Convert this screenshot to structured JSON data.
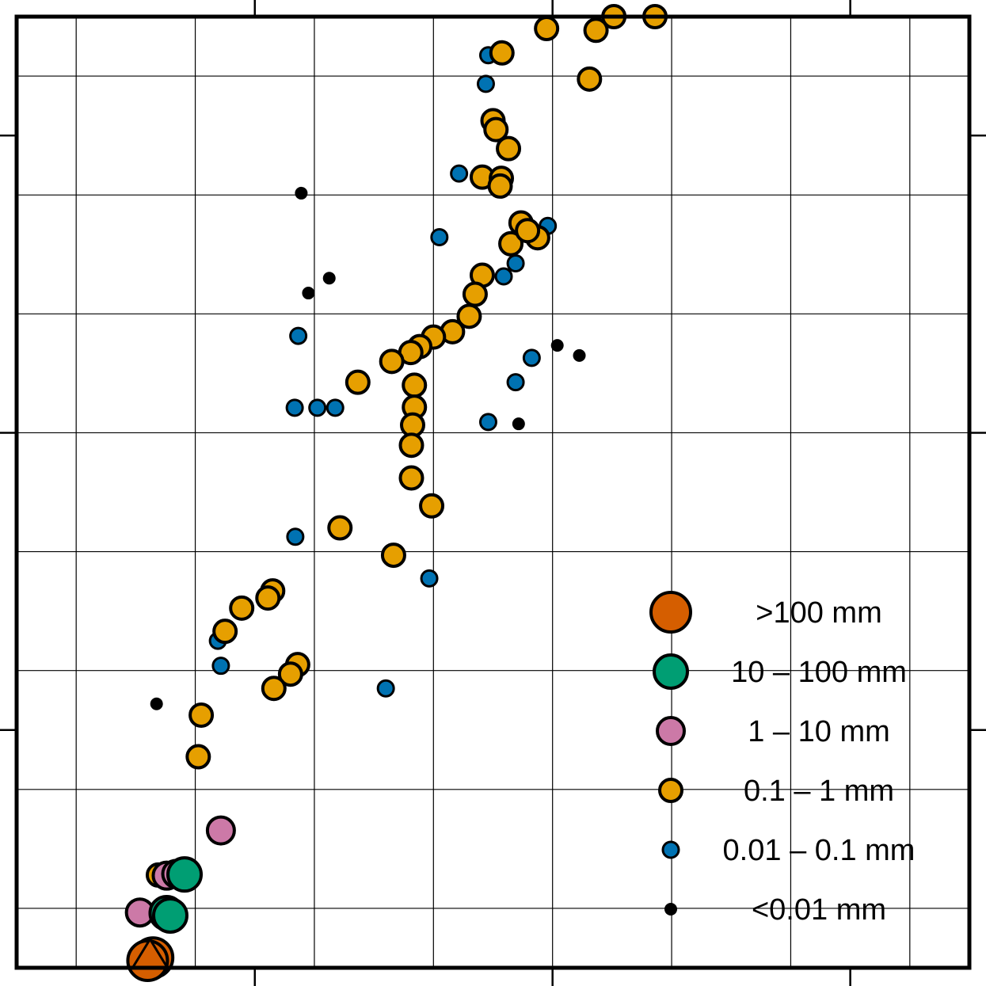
{
  "chart_data": {
    "type": "scatter",
    "title": "",
    "xlabel": "",
    "ylabel": "",
    "xlim": [
      0,
      16
    ],
    "ylim": [
      0,
      16
    ],
    "grid": true,
    "legend_position": "bottom-right",
    "colors": {
      "gt100": "#d55e00",
      "10_100": "#009e73",
      "1_10": "#cc79a7",
      "0p1_1": "#e69f00",
      "0p01_0p1": "#0072b2",
      "lt0p01": "#000000"
    },
    "series": [
      {
        "name": ">100 mm",
        "key": "gt100",
        "points": [
          [
            2.22,
            0.13
          ],
          [
            2.29,
            0.17
          ],
          [
            2.2,
            0.12
          ]
        ]
      },
      {
        "name": "10 – 100 mm",
        "key": "10_100",
        "points": [
          [
            2.82,
            1.57
          ],
          [
            2.52,
            0.92
          ],
          [
            2.58,
            0.88
          ]
        ]
      },
      {
        "name": "1 – 10 mm",
        "key": "1_10",
        "points": [
          [
            3.43,
            2.31
          ],
          [
            2.52,
            1.55
          ],
          [
            2.68,
            1.58
          ],
          [
            2.07,
            0.93
          ]
        ]
      },
      {
        "name": "0.1 – 1 mm",
        "key": "0p1_1",
        "points": [
          [
            10.03,
            16.0
          ],
          [
            10.72,
            16.0
          ],
          [
            8.9,
            15.8
          ],
          [
            9.73,
            15.77
          ],
          [
            8.15,
            15.39
          ],
          [
            9.62,
            14.95
          ],
          [
            8.0,
            14.25
          ],
          [
            8.05,
            14.1
          ],
          [
            8.26,
            13.78
          ],
          [
            7.82,
            13.3
          ],
          [
            8.14,
            13.28
          ],
          [
            8.12,
            13.15
          ],
          [
            8.47,
            12.53
          ],
          [
            8.75,
            12.28
          ],
          [
            8.3,
            12.18
          ],
          [
            8.58,
            12.4
          ],
          [
            7.82,
            11.65
          ],
          [
            7.7,
            11.33
          ],
          [
            7.6,
            10.96
          ],
          [
            7.32,
            10.7
          ],
          [
            7.0,
            10.61
          ],
          [
            6.77,
            10.45
          ],
          [
            6.62,
            10.35
          ],
          [
            6.3,
            10.2
          ],
          [
            5.73,
            9.85
          ],
          [
            6.68,
            9.8
          ],
          [
            6.68,
            9.43
          ],
          [
            6.65,
            9.13
          ],
          [
            6.63,
            8.79
          ],
          [
            6.63,
            8.24
          ],
          [
            6.97,
            7.77
          ],
          [
            5.43,
            7.4
          ],
          [
            6.33,
            6.94
          ],
          [
            4.3,
            6.34
          ],
          [
            4.22,
            6.22
          ],
          [
            3.78,
            6.05
          ],
          [
            3.5,
            5.66
          ],
          [
            4.72,
            5.1
          ],
          [
            4.6,
            4.94
          ],
          [
            4.32,
            4.7
          ],
          [
            3.1,
            4.25
          ],
          [
            3.05,
            3.55
          ],
          [
            2.38,
            1.56
          ],
          [
            2.78,
            1.55
          ]
        ]
      },
      {
        "name": "0.01 – 0.1 mm",
        "key": "0p01_0p1",
        "points": [
          [
            7.92,
            15.35
          ],
          [
            7.88,
            14.87
          ],
          [
            7.43,
            13.36
          ],
          [
            8.92,
            12.48
          ],
          [
            7.1,
            12.29
          ],
          [
            8.38,
            11.85
          ],
          [
            8.18,
            11.63
          ],
          [
            4.73,
            10.63
          ],
          [
            8.65,
            10.26
          ],
          [
            8.38,
            9.85
          ],
          [
            4.67,
            9.42
          ],
          [
            5.05,
            9.42
          ],
          [
            5.35,
            9.42
          ],
          [
            7.92,
            9.18
          ],
          [
            4.68,
            7.25
          ],
          [
            6.93,
            6.55
          ],
          [
            3.38,
            5.5
          ],
          [
            3.43,
            5.08
          ],
          [
            6.2,
            4.7
          ]
        ]
      },
      {
        "name": "<0.01 mm",
        "key": "lt0p01",
        "points": [
          [
            4.78,
            13.03
          ],
          [
            5.25,
            11.6
          ],
          [
            4.9,
            11.35
          ],
          [
            9.08,
            10.47
          ],
          [
            9.45,
            10.3
          ],
          [
            8.43,
            9.15
          ],
          [
            2.35,
            4.44
          ]
        ]
      }
    ]
  }
}
